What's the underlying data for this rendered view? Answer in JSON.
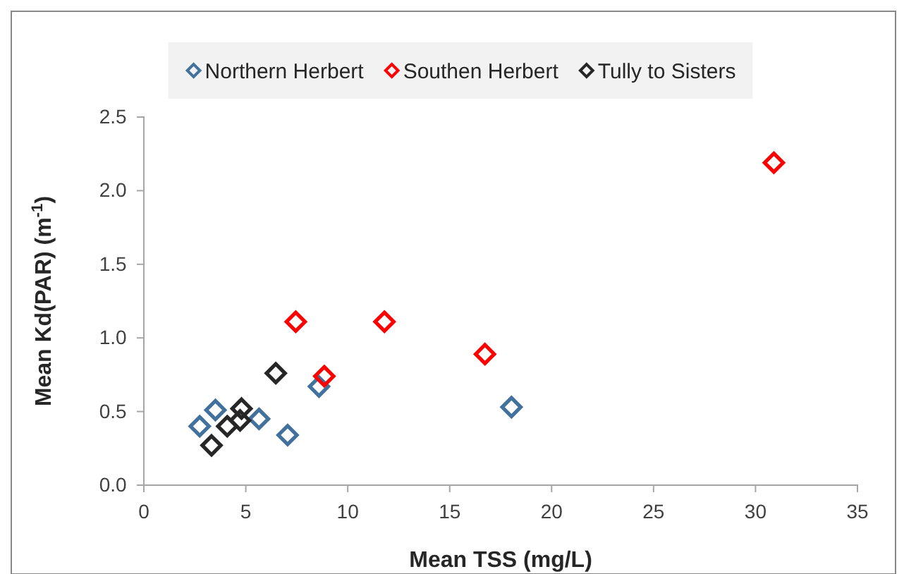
{
  "chart_data": {
    "type": "scatter",
    "xlabel": "Mean TSS (mg/L)",
    "ylabel": "Mean Kd(PAR) (m$^{-1}$)",
    "xlim": [
      0,
      35
    ],
    "xticks": [
      0,
      5,
      10,
      15,
      20,
      25,
      30,
      35
    ],
    "ylim": [
      0,
      2.5
    ],
    "yticks": [
      {
        "value": 0,
        "label": "0.0"
      },
      {
        "value": 0.5,
        "label": "0.5"
      },
      {
        "value": 1,
        "label": "1.0"
      },
      {
        "value": 1.5,
        "label": "1.5"
      },
      {
        "value": 2,
        "label": "2.0"
      },
      {
        "value": 2.5,
        "label": "2.5"
      }
    ],
    "grid": false,
    "legend": "top",
    "marker": "diamond",
    "series": [
      {
        "name": "Northern Herbert",
        "color": "#41719c",
        "x": [
          2.74,
          3.51,
          5.65,
          7.05,
          8.59,
          18.03
        ],
        "values": [
          0.4,
          0.51,
          0.45,
          0.34,
          0.67,
          0.53
        ]
      },
      {
        "name": "Southen Herbert",
        "color": "#ff0000",
        "x": [
          7.45,
          8.85,
          11.8,
          16.73,
          30.9
        ],
        "values": [
          1.11,
          0.74,
          1.11,
          0.89,
          2.19
        ]
      },
      {
        "name": "Tully to Sisters",
        "color": "#262626",
        "x": [
          3.32,
          4.09,
          4.72,
          4.79,
          6.47
        ],
        "values": [
          0.27,
          0.4,
          0.44,
          0.52,
          0.76
        ]
      }
    ]
  }
}
